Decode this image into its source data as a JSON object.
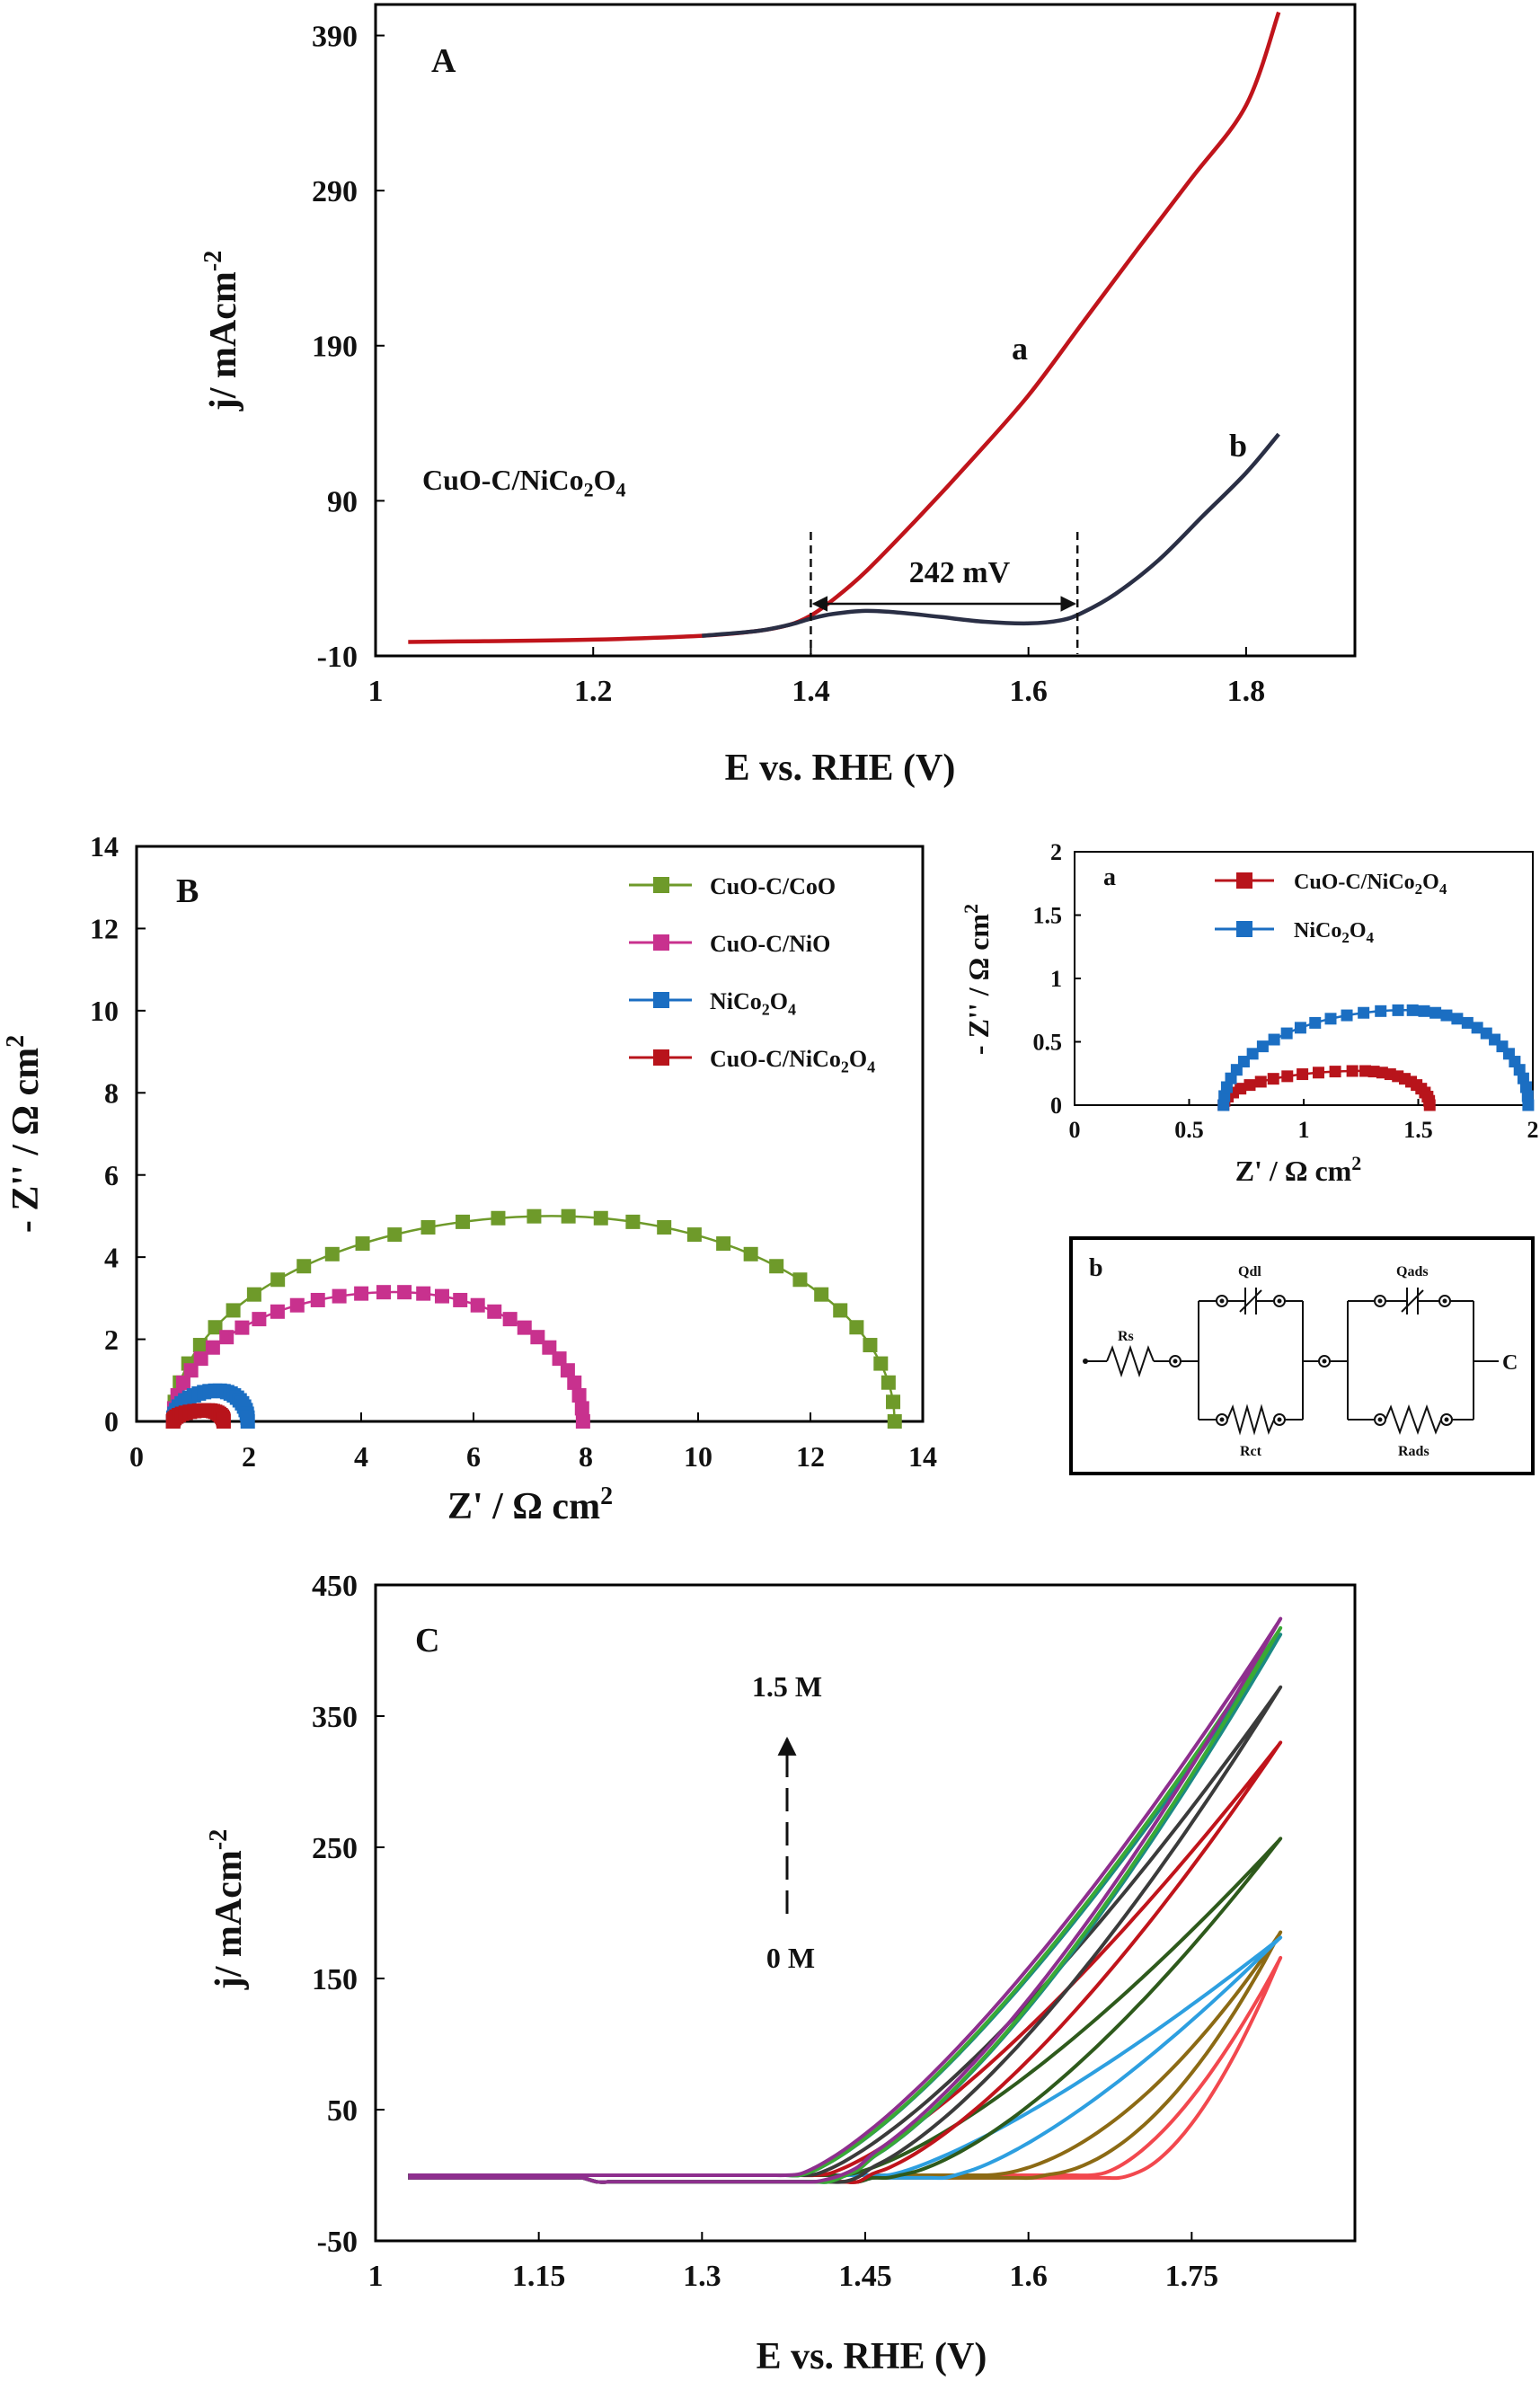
{
  "chart_data": [
    {
      "id": "A",
      "type": "line",
      "panel_label": "A",
      "xlabel": "E vs. RHE (V)",
      "ylabel": "j/ mAcm-2",
      "xlim": [
        1.0,
        1.9
      ],
      "ylim": [
        -10,
        410
      ],
      "xticks": [
        1,
        1.2,
        1.4,
        1.6,
        1.8
      ],
      "xtick_labels": [
        "1",
        "1.2",
        "1.4",
        "1.6",
        "1.8"
      ],
      "yticks": [
        -10,
        90,
        190,
        290,
        390
      ],
      "ytick_labels": [
        "-10",
        "90",
        "190",
        "290",
        "390"
      ],
      "annotation_text": "CuO-C/NiCo2O4",
      "dim_text": "242 mV",
      "dim_range": [
        1.4,
        1.645
      ],
      "series": [
        {
          "label": "a",
          "color": "#c0141b",
          "x": [
            1.03,
            1.1,
            1.2,
            1.3,
            1.35,
            1.38,
            1.4,
            1.42,
            1.45,
            1.5,
            1.55,
            1.6,
            1.65,
            1.7,
            1.75,
            1.8,
            1.83
          ],
          "y": [
            -1,
            -0.5,
            0.5,
            3,
            6,
            10,
            16,
            26,
            44,
            80,
            118,
            158,
            205,
            252,
            298,
            345,
            405
          ]
        },
        {
          "label": "b",
          "color": "#2a2f45",
          "x": [
            1.3,
            1.35,
            1.38,
            1.4,
            1.42,
            1.45,
            1.48,
            1.52,
            1.56,
            1.6,
            1.63,
            1.65,
            1.68,
            1.72,
            1.76,
            1.8,
            1.83
          ],
          "y": [
            3,
            6,
            10,
            14,
            17,
            19,
            18,
            15,
            12,
            11,
            13,
            18,
            30,
            52,
            80,
            108,
            133
          ]
        }
      ]
    },
    {
      "id": "B",
      "type": "scatter",
      "panel_label": "B",
      "xlabel": "Z' / Ω cm2",
      "ylabel": "- Z'' / Ω cm2",
      "xlim": [
        0,
        14
      ],
      "ylim": [
        0,
        14
      ],
      "xticks": [
        0,
        2,
        4,
        6,
        8,
        10,
        12,
        14
      ],
      "xtick_labels": [
        "0",
        "2",
        "4",
        "6",
        "8",
        "10",
        "12",
        "14"
      ],
      "yticks": [
        0,
        2,
        4,
        6,
        8,
        10,
        12,
        14
      ],
      "ytick_labels": [
        "0",
        "2",
        "4",
        "6",
        "8",
        "10",
        "12",
        "14"
      ],
      "legend_position": "top-right",
      "series": [
        {
          "name": "CuO-C/CoO",
          "color": "#6e9a2a",
          "arc": {
            "x0": 0.65,
            "x1": 13.5,
            "peak_x": 7.4,
            "peak_y": 5.0,
            "n": 34
          }
        },
        {
          "name": "CuO-C/NiO",
          "color": "#c8318e",
          "arc": {
            "x0": 0.65,
            "x1": 7.95,
            "peak_x": 4.6,
            "peak_y": 3.15,
            "n": 32
          }
        },
        {
          "name": "NiCo2O4",
          "color": "#1b6ec2",
          "arc": {
            "x0": 0.65,
            "x1": 1.98,
            "peak_x": 1.45,
            "peak_y": 0.75,
            "n": 26
          }
        },
        {
          "name": "CuO-C/NiCo2O4",
          "color": "#b8141b",
          "arc": {
            "x0": 0.65,
            "x1": 1.55,
            "peak_x": 1.25,
            "peak_y": 0.27,
            "n": 22
          }
        }
      ]
    },
    {
      "id": "B-inset-a",
      "type": "scatter",
      "panel_label": "a",
      "xlabel": "Z' / Ω cm2",
      "ylabel": "- Z'' / Ω cm2",
      "xlim": [
        0,
        2
      ],
      "ylim": [
        0,
        2
      ],
      "xticks": [
        0,
        0.5,
        1,
        1.5,
        2
      ],
      "xtick_labels": [
        "0",
        "0.5",
        "1",
        "1.5",
        "2"
      ],
      "yticks": [
        0,
        0.5,
        1,
        1.5,
        2
      ],
      "ytick_labels": [
        "0",
        "0.5",
        "1",
        "1.5",
        "2"
      ],
      "series": [
        {
          "name": "CuO-C/NiCo2O4",
          "color": "#b8141b",
          "arc": {
            "x0": 0.65,
            "x1": 1.55,
            "peak_x": 1.25,
            "peak_y": 0.27,
            "n": 26
          }
        },
        {
          "name": "NiCo2O4",
          "color": "#1b6ec2",
          "arc": {
            "x0": 0.65,
            "x1": 1.98,
            "peak_x": 1.45,
            "peak_y": 0.75,
            "n": 34
          }
        }
      ]
    },
    {
      "id": "C",
      "type": "line",
      "panel_label": "C",
      "xlabel": "E vs. RHE (V)",
      "ylabel": "j/ mAcm-2",
      "xlim": [
        1.0,
        1.9
      ],
      "ylim": [
        -50,
        450
      ],
      "xticks": [
        1,
        1.15,
        1.3,
        1.45,
        1.6,
        1.75
      ],
      "xtick_labels": [
        "1",
        "1.15",
        "1.3",
        "1.45",
        "1.6",
        "1.75"
      ],
      "yticks": [
        -50,
        50,
        150,
        250,
        350,
        450
      ],
      "ytick_labels": [
        "-50",
        "50",
        "150",
        "250",
        "350",
        "450"
      ],
      "arrow_top_text": "1.5 M",
      "arrow_bottom_text": "0 M",
      "x_start": 1.03,
      "x_end": 1.83,
      "series": [
        {
          "color": "#f2484e",
          "onset": 1.66,
          "jmax": 163,
          "curv": 1.6,
          "hyst": 0.03
        },
        {
          "color": "#8c6a14",
          "onset": 1.56,
          "jmax": 183,
          "curv": 1.8,
          "hyst": 0.05
        },
        {
          "color": "#2d9fe0",
          "onset": 1.47,
          "jmax": 180,
          "curv": 1.3,
          "hyst": 0.06
        },
        {
          "color": "#2e5a1c",
          "onset": 1.43,
          "jmax": 255,
          "curv": 1.4,
          "hyst": 0.05
        },
        {
          "color": "#c0141b",
          "onset": 1.41,
          "jmax": 328,
          "curv": 1.35,
          "hyst": 0.04
        },
        {
          "color": "#3b3b3b",
          "onset": 1.4,
          "jmax": 370,
          "curv": 1.35,
          "hyst": 0.035
        },
        {
          "color": "#1c8a84",
          "onset": 1.39,
          "jmax": 410,
          "curv": 1.35,
          "hyst": 0.03
        },
        {
          "color": "#3aa935",
          "onset": 1.39,
          "jmax": 415,
          "curv": 1.35,
          "hyst": 0.03
        },
        {
          "color": "#8e2f8e",
          "onset": 1.385,
          "jmax": 422,
          "curv": 1.35,
          "hyst": 0.03
        }
      ]
    }
  ],
  "circuit": {
    "panel_label": "b",
    "labels": {
      "rs": "Rs",
      "qdl": "Qdl",
      "rct": "Rct",
      "qads": "Qads",
      "rads": "Rads",
      "end": "C"
    }
  }
}
